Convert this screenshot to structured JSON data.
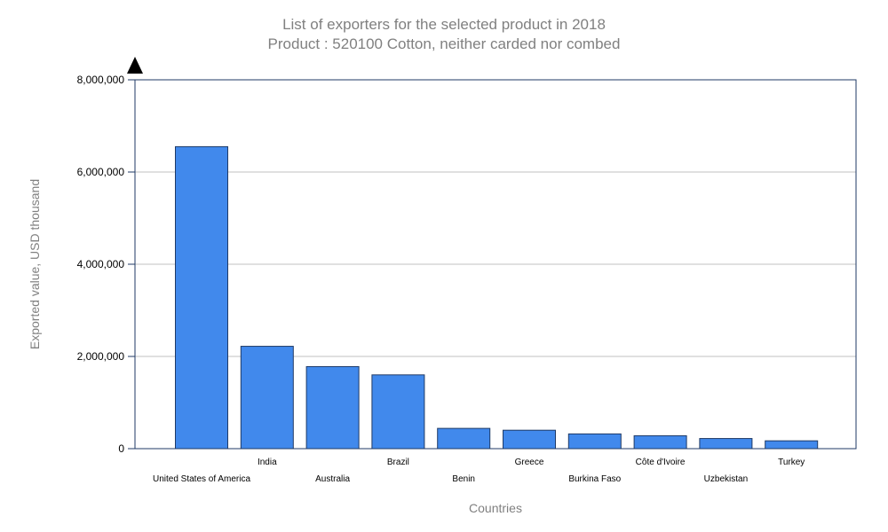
{
  "chart_data": {
    "type": "bar",
    "title": "List of exporters for the selected product in 2018",
    "subtitle": "Product : 520100 Cotton, neither carded nor combed",
    "xlabel": "Countries",
    "ylabel": "Exported value, USD thousand",
    "ylim": [
      0,
      8000000
    ],
    "yticks": [
      0,
      2000000,
      4000000,
      6000000,
      8000000
    ],
    "ytick_labels": [
      "0",
      "2,000,000",
      "4,000,000",
      "6,000,000",
      "8,000,000"
    ],
    "grid": true,
    "categories": [
      "United States of America",
      "India",
      "Australia",
      "Brazil",
      "Benin",
      "Greece",
      "Burkina Faso",
      "Côte d'Ivoire",
      "Uzbekistan",
      "Turkey"
    ],
    "values": [
      6550000,
      2220000,
      1780000,
      1600000,
      440000,
      400000,
      320000,
      280000,
      220000,
      170000
    ],
    "colors": {
      "bar": "#4189EC",
      "bar_stroke": "#1F3A66",
      "axis": "#1F3A66",
      "grid": "#C0C0C0",
      "title": "#808080"
    }
  }
}
